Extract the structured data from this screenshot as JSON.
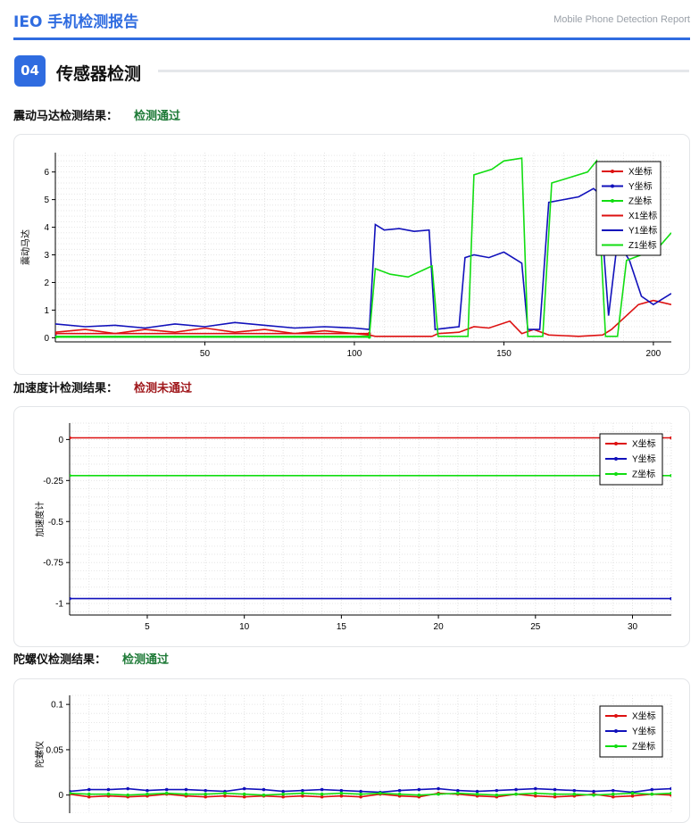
{
  "header": {
    "title": "IEO 手机检测报告",
    "subtitle": "Mobile Phone Detection Report"
  },
  "section": {
    "number": "04",
    "title": "传感器检测"
  },
  "results": [
    {
      "label": "震动马达检测结果：",
      "status": "检测通过",
      "pass": true
    },
    {
      "label": "加速度计检测结果：",
      "status": "检测未通过",
      "pass": false
    },
    {
      "label": "陀螺仪检测结果：",
      "status": "检测通过",
      "pass": true
    }
  ],
  "colors": {
    "accent": "#2f6ce0",
    "red": "#dd1111",
    "blue": "#1111bb",
    "green": "#11dd11"
  },
  "chart_data": [
    {
      "type": "line",
      "ylabel": "震动马达",
      "xlim": [
        0,
        206
      ],
      "ylim": [
        -0.15,
        6.7
      ],
      "xticks": [
        50,
        100,
        150,
        200
      ],
      "yticks": [
        0,
        1,
        2,
        3,
        4,
        5,
        6
      ],
      "legend_position": "top-right",
      "series": [
        {
          "name": "X坐标",
          "color": "#dd1111",
          "markers": true,
          "x": [
            0,
            105
          ],
          "y": [
            0.15,
            0.15
          ]
        },
        {
          "name": "Y坐标",
          "color": "#1111bb",
          "markers": true,
          "x": [
            0,
            105
          ],
          "y": [
            0.05,
            0.05
          ]
        },
        {
          "name": "Z坐标",
          "color": "#11dd11",
          "markers": true,
          "x": [
            0,
            105
          ],
          "y": [
            0.02,
            0.02
          ]
        },
        {
          "name": "X1坐标",
          "color": "#dd1111",
          "markers": false,
          "x": [
            0,
            10,
            20,
            30,
            40,
            50,
            60,
            70,
            80,
            90,
            100,
            105,
            107,
            126,
            128,
            135,
            140,
            145,
            152,
            156,
            160,
            165,
            175,
            183,
            186,
            195,
            200,
            206
          ],
          "y": [
            0.2,
            0.3,
            0.15,
            0.3,
            0.2,
            0.35,
            0.2,
            0.3,
            0.15,
            0.25,
            0.15,
            0.1,
            0.05,
            0.05,
            0.15,
            0.2,
            0.4,
            0.35,
            0.6,
            0.15,
            0.3,
            0.1,
            0.05,
            0.1,
            0.3,
            1.2,
            1.35,
            1.2
          ]
        },
        {
          "name": "Y1坐标",
          "color": "#1111bb",
          "markers": false,
          "x": [
            0,
            10,
            20,
            30,
            40,
            50,
            60,
            70,
            80,
            90,
            100,
            105,
            107,
            110,
            115,
            120,
            125,
            127,
            135,
            137,
            140,
            145,
            150,
            156,
            158,
            162,
            165,
            170,
            175,
            180,
            182,
            185,
            188,
            192,
            196,
            200,
            206
          ],
          "y": [
            0.5,
            0.4,
            0.45,
            0.35,
            0.5,
            0.4,
            0.55,
            0.45,
            0.35,
            0.4,
            0.35,
            0.3,
            4.1,
            3.9,
            3.95,
            3.85,
            3.9,
            0.3,
            0.4,
            2.9,
            3.0,
            2.9,
            3.1,
            2.7,
            0.3,
            0.3,
            4.9,
            5.0,
            5.1,
            5.4,
            5.2,
            0.8,
            3.5,
            2.8,
            1.5,
            1.2,
            1.6
          ]
        },
        {
          "name": "Z1坐标",
          "color": "#11dd11",
          "markers": false,
          "x": [
            0,
            105,
            107,
            112,
            118,
            124,
            126,
            128,
            138,
            140,
            146,
            150,
            156,
            158,
            163,
            166,
            172,
            178,
            181,
            184,
            188,
            191,
            196,
            202,
            206
          ],
          "y": [
            0.05,
            0.05,
            2.5,
            2.3,
            2.2,
            2.5,
            2.6,
            0.05,
            0.05,
            5.9,
            6.1,
            6.4,
            6.5,
            0.05,
            0.05,
            5.6,
            5.8,
            6.0,
            6.4,
            0.05,
            0.05,
            2.8,
            3.0,
            3.3,
            3.8
          ]
        }
      ]
    },
    {
      "type": "line",
      "ylabel": "加速度计",
      "xlim": [
        1,
        32
      ],
      "ylim": [
        -1.07,
        0.1
      ],
      "xticks": [
        5,
        10,
        15,
        20,
        25,
        30
      ],
      "yticks": [
        0,
        -0.25,
        -0.5,
        -0.75,
        -1
      ],
      "ytick_labels": [
        "0",
        "-0.25",
        "-0.5",
        "-0.75",
        "-1"
      ],
      "legend_position": "top-right",
      "series": [
        {
          "name": "X坐标",
          "color": "#dd1111",
          "markers": true,
          "x": [
            1,
            32
          ],
          "y": [
            0.01,
            0.01
          ]
        },
        {
          "name": "Y坐标",
          "color": "#1111bb",
          "markers": true,
          "x": [
            1,
            32
          ],
          "y": [
            -0.97,
            -0.97
          ]
        },
        {
          "name": "Z坐标",
          "color": "#11dd11",
          "markers": true,
          "x": [
            1,
            32
          ],
          "y": [
            -0.22,
            -0.22
          ]
        }
      ]
    },
    {
      "type": "line",
      "ylabel": "陀螺仪",
      "xlim": [
        1,
        32
      ],
      "ylim": [
        -0.02,
        0.11
      ],
      "xticks": [],
      "yticks": [
        0.1,
        0.05,
        0
      ],
      "ytick_labels": [
        "0.1",
        "0.05",
        "0"
      ],
      "legend_position": "top-right",
      "series": [
        {
          "name": "X坐标",
          "color": "#dd1111",
          "markers": true,
          "x": [
            1,
            2,
            3,
            4,
            5,
            6,
            7,
            8,
            9,
            10,
            11,
            12,
            13,
            14,
            15,
            16,
            17,
            18,
            19,
            20,
            21,
            22,
            23,
            24,
            25,
            26,
            27,
            28,
            29,
            30,
            31,
            32
          ],
          "y": [
            0.001,
            -0.002,
            -0.001,
            -0.002,
            -0.001,
            0.001,
            -0.001,
            -0.002,
            -0.001,
            -0.002,
            -0.001,
            -0.002,
            -0.001,
            -0.002,
            -0.001,
            -0.002,
            0.001,
            -0.001,
            -0.002,
            0.002,
            0.001,
            -0.001,
            -0.002,
            0.001,
            -0.001,
            -0.002,
            -0.001,
            0.001,
            -0.002,
            -0.001,
            0.001,
            0.0
          ]
        },
        {
          "name": "Y坐标",
          "color": "#1111bb",
          "markers": true,
          "x": [
            1,
            2,
            3,
            4,
            5,
            6,
            7,
            8,
            9,
            10,
            11,
            12,
            13,
            14,
            15,
            16,
            17,
            18,
            19,
            20,
            21,
            22,
            23,
            24,
            25,
            26,
            27,
            28,
            29,
            30,
            31,
            32
          ],
          "y": [
            0.004,
            0.006,
            0.006,
            0.007,
            0.005,
            0.006,
            0.006,
            0.005,
            0.004,
            0.007,
            0.006,
            0.004,
            0.005,
            0.006,
            0.005,
            0.004,
            0.003,
            0.005,
            0.006,
            0.007,
            0.005,
            0.004,
            0.005,
            0.006,
            0.007,
            0.006,
            0.005,
            0.004,
            0.005,
            0.003,
            0.006,
            0.007
          ]
        },
        {
          "name": "Z坐标",
          "color": "#11dd11",
          "markers": true,
          "x": [
            1,
            2,
            3,
            4,
            5,
            6,
            7,
            8,
            9,
            10,
            11,
            12,
            13,
            14,
            15,
            16,
            17,
            18,
            19,
            20,
            21,
            22,
            23,
            24,
            25,
            26,
            27,
            28,
            29,
            30,
            31,
            32
          ],
          "y": [
            0.002,
            0.001,
            0.001,
            0.0,
            0.001,
            0.002,
            0.001,
            0.001,
            0.002,
            0.001,
            0.0,
            0.001,
            0.002,
            0.001,
            0.002,
            0.001,
            0.002,
            0.001,
            0.0,
            0.001,
            0.002,
            0.001,
            0.0,
            0.001,
            0.002,
            0.001,
            0.001,
            0.0,
            0.001,
            0.002,
            0.001,
            0.002
          ]
        }
      ]
    }
  ]
}
